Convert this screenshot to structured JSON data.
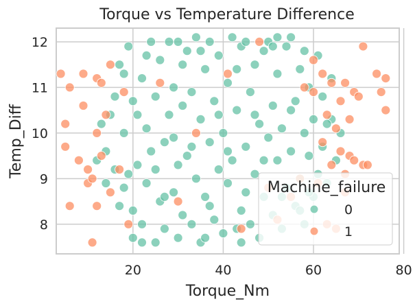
{
  "chart_data": {
    "type": "scatter",
    "title": "Torque vs Temperature Difference",
    "xlabel": "Torque_Nm",
    "ylabel": "Temp_Diff",
    "xlim": [
      3,
      79
    ],
    "ylim": [
      7.35,
      12.3
    ],
    "xticks": [
      20,
      40,
      60,
      80
    ],
    "yticks": [
      8,
      9,
      10,
      11,
      12
    ],
    "grid": true,
    "legend": {
      "title": "Machine_failure",
      "placement": "lower-right"
    },
    "series": [
      {
        "name": "0",
        "color": "#66c2a5",
        "note": "dense cloud, Torque ~12-66, Temp_Diff 7.6-12.1",
        "points": [
          [
            14,
            9.6
          ],
          [
            15,
            10.4
          ],
          [
            16,
            9.2
          ],
          [
            17,
            8.4
          ],
          [
            17,
            11.5
          ],
          [
            18,
            8.8
          ],
          [
            18,
            10.0
          ],
          [
            19,
            9.1
          ],
          [
            19,
            11.9
          ],
          [
            20,
            7.7
          ],
          [
            20,
            8.3
          ],
          [
            20,
            10.7
          ],
          [
            21,
            9.3
          ],
          [
            22,
            8.0
          ],
          [
            22,
            11.2
          ],
          [
            23,
            10.1
          ],
          [
            23,
            8.9
          ],
          [
            24,
            12.0
          ],
          [
            24,
            9.6
          ],
          [
            25,
            7.6
          ],
          [
            25,
            10.8
          ],
          [
            26,
            8.5
          ],
          [
            26,
            11.6
          ],
          [
            27,
            9.8
          ],
          [
            27,
            7.9
          ],
          [
            28,
            10.4
          ],
          [
            28,
            12.0
          ],
          [
            29,
            8.7
          ],
          [
            29,
            11.0
          ],
          [
            30,
            9.3
          ],
          [
            30,
            7.7
          ],
          [
            31,
            10.6
          ],
          [
            31,
            8.2
          ],
          [
            32,
            11.8
          ],
          [
            32,
            9.5
          ],
          [
            33,
            8.0
          ],
          [
            33,
            10.9
          ],
          [
            34,
            12.1
          ],
          [
            34,
            9.0
          ],
          [
            35,
            7.6
          ],
          [
            35,
            10.3
          ],
          [
            36,
            8.6
          ],
          [
            36,
            11.4
          ],
          [
            37,
            9.8
          ],
          [
            37,
            12.0
          ],
          [
            38,
            8.1
          ],
          [
            38,
            10.7
          ],
          [
            39,
            9.2
          ],
          [
            39,
            11.7
          ],
          [
            40,
            7.8
          ],
          [
            40,
            10.0
          ],
          [
            41,
            8.9
          ],
          [
            41,
            11.1
          ],
          [
            42,
            12.1
          ],
          [
            42,
            9.4
          ],
          [
            43,
            7.9
          ],
          [
            43,
            10.5
          ],
          [
            44,
            8.3
          ],
          [
            44,
            11.9
          ],
          [
            45,
            9.7
          ],
          [
            45,
            12.0
          ],
          [
            46,
            8.0
          ],
          [
            46,
            10.9
          ],
          [
            47,
            9.1
          ],
          [
            47,
            11.5
          ],
          [
            48,
            7.7
          ],
          [
            48,
            10.2
          ],
          [
            49,
            8.6
          ],
          [
            49,
            11.8
          ],
          [
            50,
            9.9
          ],
          [
            50,
            12.0
          ],
          [
            51,
            8.2
          ],
          [
            51,
            10.6
          ],
          [
            52,
            9.4
          ],
          [
            52,
            11.3
          ],
          [
            53,
            7.9
          ],
          [
            53,
            10.1
          ],
          [
            54,
            8.8
          ],
          [
            54,
            11.9
          ],
          [
            55,
            9.6
          ],
          [
            55,
            12.1
          ],
          [
            56,
            8.4
          ],
          [
            56,
            10.7
          ],
          [
            57,
            9.0
          ],
          [
            57,
            11.4
          ],
          [
            58,
            10.0
          ],
          [
            58,
            8.0
          ],
          [
            59,
            9.5
          ],
          [
            59,
            11.0
          ],
          [
            60,
            10.3
          ],
          [
            60,
            8.6
          ],
          [
            61,
            9.1
          ],
          [
            61,
            11.7
          ],
          [
            62,
            10.8
          ],
          [
            62,
            9.7
          ],
          [
            63,
            8.9
          ],
          [
            64,
            10.3
          ],
          [
            64,
            11.2
          ],
          [
            65,
            9.4
          ],
          [
            66,
            10.0
          ],
          [
            16,
            10.8
          ],
          [
            18,
            11.3
          ],
          [
            21,
            10.4
          ],
          [
            23,
            11.7
          ],
          [
            25,
            9.2
          ],
          [
            27,
            8.6
          ],
          [
            29,
            9.9
          ],
          [
            31,
            11.5
          ],
          [
            33,
            9.7
          ],
          [
            35,
            11.8
          ],
          [
            37,
            8.4
          ],
          [
            39,
            10.4
          ],
          [
            41,
            9.6
          ],
          [
            43,
            11.4
          ],
          [
            45,
            8.7
          ],
          [
            47,
            10.4
          ],
          [
            49,
            9.4
          ],
          [
            51,
            11.9
          ],
          [
            53,
            8.6
          ],
          [
            55,
            10.5
          ],
          [
            57,
            8.3
          ],
          [
            59,
            8.7
          ],
          [
            13,
            10.2
          ],
          [
            14,
            8.9
          ],
          [
            12,
            9.4
          ],
          [
            22,
            7.6
          ],
          [
            30,
            12.0
          ],
          [
            36,
            7.7
          ],
          [
            44,
            7.6
          ],
          [
            52,
            12.1
          ],
          [
            58,
            11.8
          ],
          [
            63,
            10.2
          ]
        ]
      },
      {
        "name": "1",
        "color": "#fc8d62",
        "note": "sparse, mostly at torque extremes",
        "points": [
          [
            4,
            11.3
          ],
          [
            5,
            10.2
          ],
          [
            5,
            9.7
          ],
          [
            6,
            11.0
          ],
          [
            6,
            8.4
          ],
          [
            8,
            9.4
          ],
          [
            9,
            11.3
          ],
          [
            9,
            10.6
          ],
          [
            10,
            8.9
          ],
          [
            10,
            9.2
          ],
          [
            11,
            7.6
          ],
          [
            11,
            9.0
          ],
          [
            12,
            8.4
          ],
          [
            12,
            10.0
          ],
          [
            12,
            11.2
          ],
          [
            13,
            9.5
          ],
          [
            13,
            11.1
          ],
          [
            14,
            10.4
          ],
          [
            15,
            8.7
          ],
          [
            15,
            11.5
          ],
          [
            17,
            9.2
          ],
          [
            18,
            10.9
          ],
          [
            19,
            8.0
          ],
          [
            30,
            8.5
          ],
          [
            41,
            11.3
          ],
          [
            44,
            7.9
          ],
          [
            50,
            8.8
          ],
          [
            52,
            8.1
          ],
          [
            55,
            8.6
          ],
          [
            57,
            9.0
          ],
          [
            58,
            11.0
          ],
          [
            60,
            11.6
          ],
          [
            60,
            10.9
          ],
          [
            61,
            8.9
          ],
          [
            62,
            11.3
          ],
          [
            62,
            9.8
          ],
          [
            63,
            10.4
          ],
          [
            63,
            8.0
          ],
          [
            64,
            9.3
          ],
          [
            64,
            11.1
          ],
          [
            65,
            10.1
          ],
          [
            65,
            7.9
          ],
          [
            66,
            9.6
          ],
          [
            66,
            10.7
          ],
          [
            67,
            9.1
          ],
          [
            67,
            11.1
          ],
          [
            67,
            8.7
          ],
          [
            68,
            9.5
          ],
          [
            68,
            10.3
          ],
          [
            69,
            9.4
          ],
          [
            69,
            10.9
          ],
          [
            70,
            10.8
          ],
          [
            71,
            9.3
          ],
          [
            71,
            11.9
          ],
          [
            72,
            9.3
          ],
          [
            74,
            11.3
          ],
          [
            75,
            10.9
          ],
          [
            76,
            10.5
          ],
          [
            76,
            11.2
          ],
          [
            48,
            12.0
          ],
          [
            26,
            11.1
          ],
          [
            34,
            10.0
          ]
        ]
      }
    ]
  }
}
